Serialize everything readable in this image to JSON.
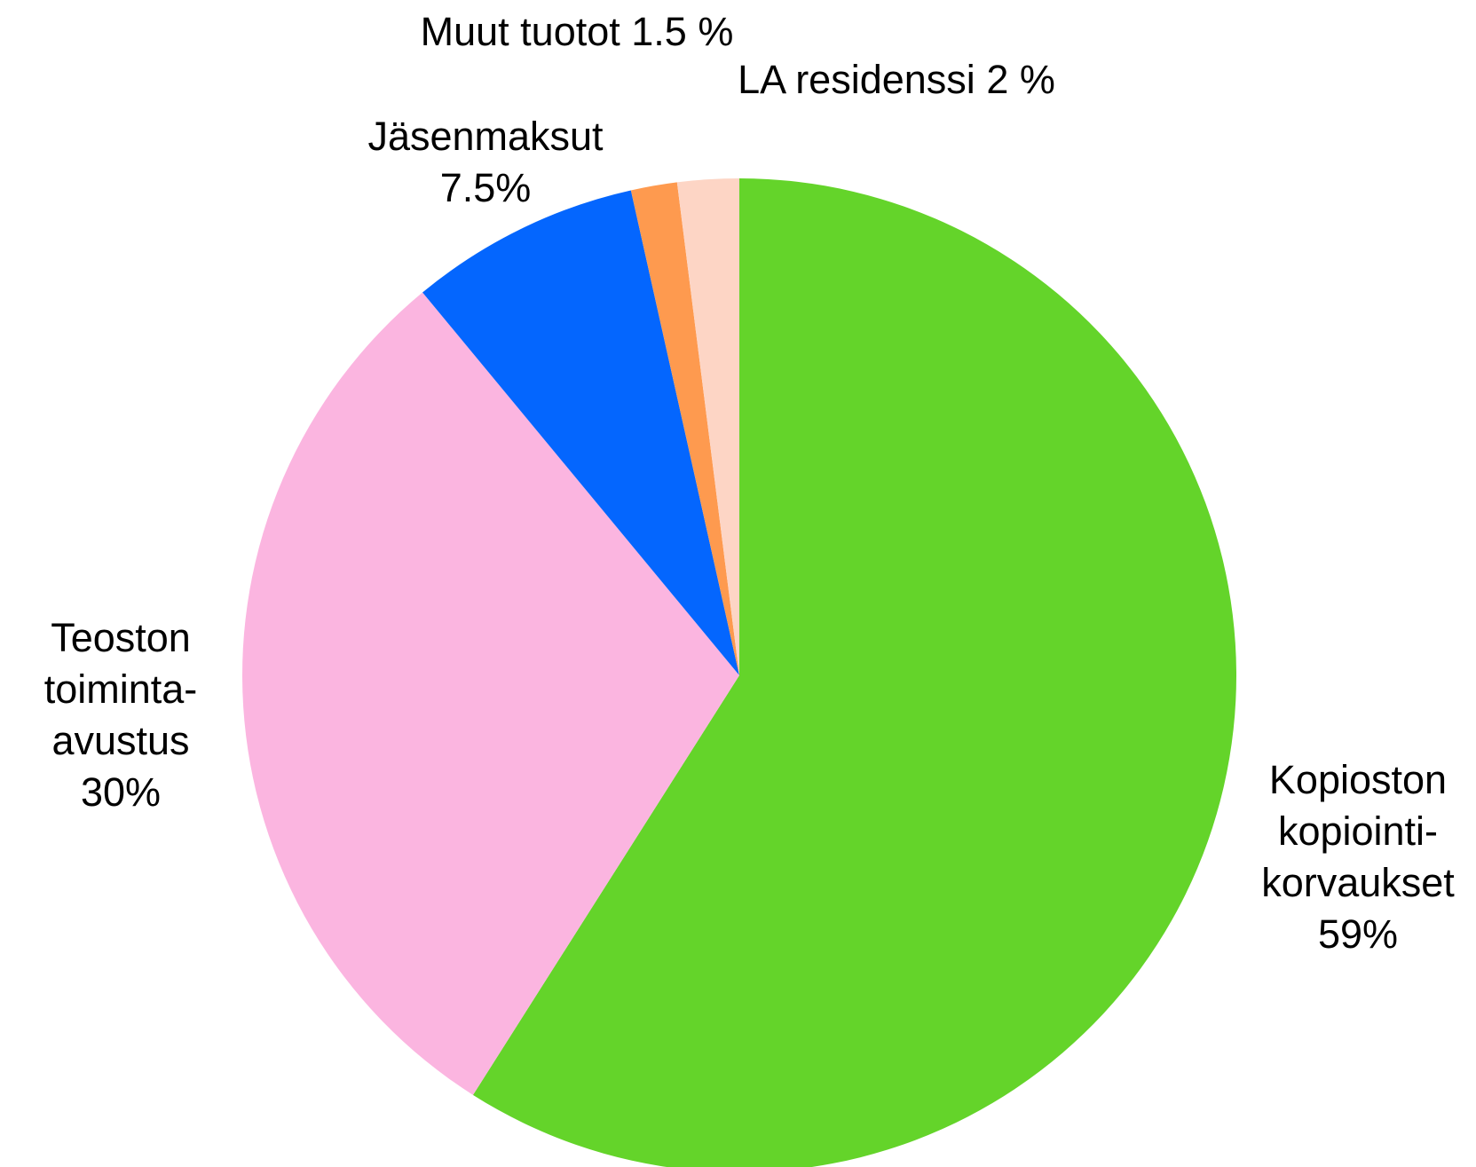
{
  "chart_data": {
    "type": "pie",
    "categories": [
      [
        "Kopioston",
        "kopiointi-",
        "korvaukset"
      ],
      [
        "Teoston",
        "toiminta-",
        "avustus"
      ],
      [
        "Jäsenmaksut"
      ],
      [
        "Muut tuotot"
      ],
      [
        "LA residenssi"
      ]
    ],
    "values": [
      59,
      30,
      7.5,
      1.5,
      2
    ],
    "value_labels": [
      "59%",
      "30%",
      "7.5%",
      "1.5 %",
      "2 %"
    ],
    "colors": [
      "#64d42a",
      "#fbb5e0",
      "#0466fe",
      "#fe9a4f",
      "#fdd5c5"
    ]
  }
}
